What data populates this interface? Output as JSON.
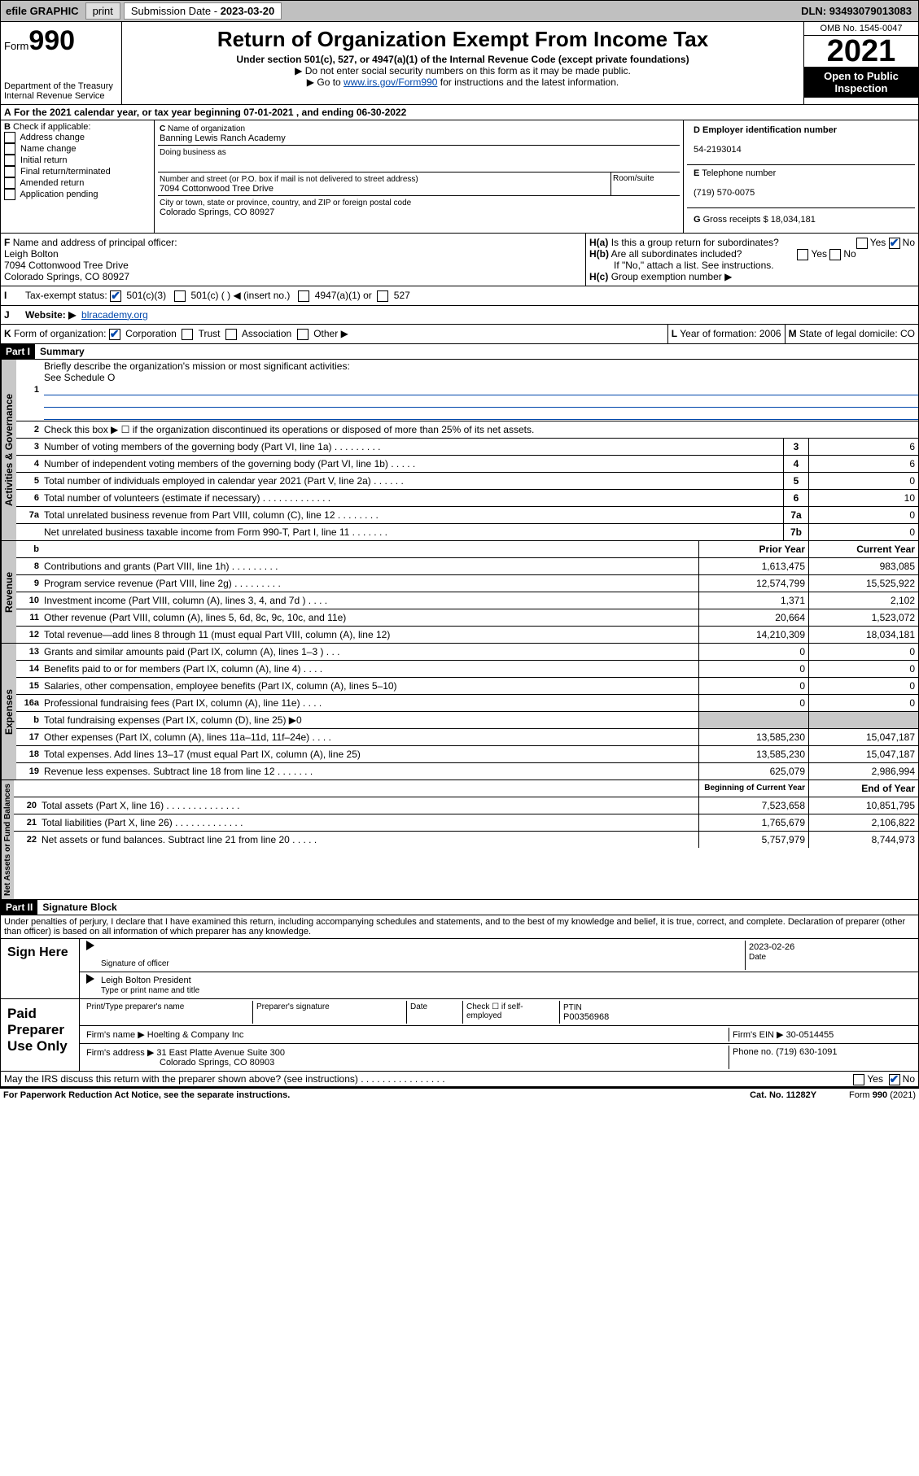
{
  "topbar": {
    "efile": "efile GRAPHIC",
    "print": "print",
    "submission_label": "Submission Date - ",
    "submission_date": "2023-03-20",
    "dln_label": "DLN: ",
    "dln": "93493079013083"
  },
  "header": {
    "form_word": "Form",
    "form_no": "990",
    "dept": "Department of the Treasury",
    "irs": "Internal Revenue Service",
    "title": "Return of Organization Exempt From Income Tax",
    "sub": "Under section 501(c), 527, or 4947(a)(1) of the Internal Revenue Code (except private foundations)",
    "note1": "▶ Do not enter social security numbers on this form as it may be made public.",
    "note2_pre": "▶ Go to ",
    "note2_link": "www.irs.gov/Form990",
    "note2_post": " for instructions and the latest information.",
    "omb": "OMB No. 1545-0047",
    "year": "2021",
    "opi": "Open to Public Inspection"
  },
  "A": {
    "text": "For the 2021 calendar year, or tax year beginning ",
    "begin": "07-01-2021",
    "mid": " , and ending ",
    "end": "06-30-2022"
  },
  "B": {
    "label": "Check if applicable:",
    "opts": [
      "Address change",
      "Name change",
      "Initial return",
      "Final return/terminated",
      "Amended return",
      "Application pending"
    ]
  },
  "C": {
    "name_label": "Name of organization",
    "name": "Banning Lewis Ranch Academy",
    "dba_label": "Doing business as",
    "dba": "",
    "street_label": "Number and street (or P.O. box if mail is not delivered to street address)",
    "room_label": "Room/suite",
    "street": "7094 Cottonwood Tree Drive",
    "city_label": "City or town, state or province, country, and ZIP or foreign postal code",
    "city": "Colorado Springs, CO  80927"
  },
  "D": {
    "label": "Employer identification number",
    "val": "54-2193014"
  },
  "E": {
    "label": "Telephone number",
    "val": "(719) 570-0075"
  },
  "G": {
    "label": "Gross receipts $",
    "val": "18,034,181"
  },
  "F": {
    "label": "Name and address of principal officer:",
    "name": "Leigh Bolton",
    "addr1": "7094 Cottonwood Tree Drive",
    "addr2": "Colorado Springs, CO  80927"
  },
  "H": {
    "a": "Is this a group return for subordinates?",
    "a_yes": "Yes",
    "a_no": "No",
    "b": "Are all subordinates included?",
    "b_yes": "Yes",
    "b_no": "No",
    "b_note": "If \"No,\" attach a list. See instructions.",
    "c": "Group exemption number ▶"
  },
  "I": {
    "label": "Tax-exempt status:",
    "o1": "501(c)(3)",
    "o2": "501(c) (  ) ◀ (insert no.)",
    "o3": "4947(a)(1) or",
    "o4": "527"
  },
  "J": {
    "label": "Website: ▶",
    "val": "blracademy.org"
  },
  "K": {
    "label": "Form of organization:",
    "o1": "Corporation",
    "o2": "Trust",
    "o3": "Association",
    "o4": "Other ▶"
  },
  "L": {
    "label": "Year of formation:",
    "val": "2006"
  },
  "M": {
    "label": "State of legal domicile:",
    "val": "CO"
  },
  "part1": {
    "hdr": "Part I",
    "title": "Summary"
  },
  "summary": {
    "l1": "Briefly describe the organization's mission or most significant activities:",
    "l1v": "See Schedule O",
    "l2": "Check this box ▶ ☐  if the organization discontinued its operations or disposed of more than 25% of its net assets.",
    "l3": "Number of voting members of the governing body (Part VI, line 1a)  .    .    .    .    .    .    .    .    .",
    "l3v": "6",
    "l4": "Number of independent voting members of the governing body (Part VI, line 1b)   .    .    .    .    .",
    "l4v": "6",
    "l5": "Total number of individuals employed in calendar year 2021 (Part V, line 2a)    .    .    .    .    .    .",
    "l5v": "0",
    "l6": "Total number of volunteers (estimate if necessary)   .    .    .    .    .    .    .    .    .    .    .    .    .",
    "l6v": "10",
    "l7a": "Total unrelated business revenue from Part VIII, column (C), line 12  .    .    .    .    .    .    .    .",
    "l7av": "0",
    "l7b": "Net unrelated business taxable income from Form 990-T, Part I, line 11   .    .    .    .    .    .    .",
    "l7bv": "0"
  },
  "cols": {
    "prior": "Prior Year",
    "current": "Current Year",
    "boy": "Beginning of Current Year",
    "eoy": "End of Year"
  },
  "revenue": [
    {
      "n": "8",
      "t": "Contributions and grants (Part VIII, line 1h)    .    .    .    .    .    .    .    .    .",
      "p": "1,613,475",
      "c": "983,085"
    },
    {
      "n": "9",
      "t": "Program service revenue (Part VIII, line 2g)    .    .    .    .    .    .    .    .    .",
      "p": "12,574,799",
      "c": "15,525,922"
    },
    {
      "n": "10",
      "t": "Investment income (Part VIII, column (A), lines 3, 4, and 7d )   .    .    .    .",
      "p": "1,371",
      "c": "2,102"
    },
    {
      "n": "11",
      "t": "Other revenue (Part VIII, column (A), lines 5, 6d, 8c, 9c, 10c, and 11e)",
      "p": "20,664",
      "c": "1,523,072"
    },
    {
      "n": "12",
      "t": "Total revenue—add lines 8 through 11 (must equal Part VIII, column (A), line 12)",
      "p": "14,210,309",
      "c": "18,034,181"
    }
  ],
  "expenses": [
    {
      "n": "13",
      "t": "Grants and similar amounts paid (Part IX, column (A), lines 1–3 )  .    .    .",
      "p": "0",
      "c": "0"
    },
    {
      "n": "14",
      "t": "Benefits paid to or for members (Part IX, column (A), line 4)   .    .    .    .",
      "p": "0",
      "c": "0"
    },
    {
      "n": "15",
      "t": "Salaries, other compensation, employee benefits (Part IX, column (A), lines 5–10)",
      "p": "0",
      "c": "0"
    },
    {
      "n": "16a",
      "t": "Professional fundraising fees (Part IX, column (A), line 11e)   .    .    .    .",
      "p": "0",
      "c": "0"
    },
    {
      "n": "b",
      "t": "Total fundraising expenses (Part IX, column (D), line 25) ▶0",
      "p": "",
      "c": "",
      "grey": true
    },
    {
      "n": "17",
      "t": "Other expenses (Part IX, column (A), lines 11a–11d, 11f–24e)  .    .    .    .",
      "p": "13,585,230",
      "c": "15,047,187"
    },
    {
      "n": "18",
      "t": "Total expenses. Add lines 13–17 (must equal Part IX, column (A), line 25)",
      "p": "13,585,230",
      "c": "15,047,187"
    },
    {
      "n": "19",
      "t": "Revenue less expenses. Subtract line 18 from line 12  .    .    .    .    .    .    .",
      "p": "625,079",
      "c": "2,986,994"
    }
  ],
  "netassets": [
    {
      "n": "20",
      "t": "Total assets (Part X, line 16)  .    .    .    .    .    .    .    .    .    .    .    .    .    .",
      "p": "7,523,658",
      "c": "10,851,795"
    },
    {
      "n": "21",
      "t": "Total liabilities (Part X, line 26)   .    .    .    .    .    .    .    .    .    .    .    .    .",
      "p": "1,765,679",
      "c": "2,106,822"
    },
    {
      "n": "22",
      "t": "Net assets or fund balances. Subtract line 21 from line 20  .    .    .    .    .",
      "p": "5,757,979",
      "c": "8,744,973"
    }
  ],
  "tabs": {
    "ag": "Activities & Governance",
    "rev": "Revenue",
    "exp": "Expenses",
    "na": "Net Assets or Fund Balances"
  },
  "part2": {
    "hdr": "Part II",
    "title": "Signature Block",
    "decl": "Under penalties of perjury, I declare that I have examined this return, including accompanying schedules and statements, and to the best of my knowledge and belief, it is true, correct, and complete. Declaration of preparer (other than officer) is based on all information of which preparer has any knowledge."
  },
  "sign": {
    "here": "Sign Here",
    "sig_label": "Signature of officer",
    "date_label": "Date",
    "date": "2023-02-26",
    "name": "Leigh Bolton  President",
    "name_label": "Type or print name and title"
  },
  "paid": {
    "title": "Paid Preparer Use Only",
    "c1": "Print/Type preparer's name",
    "c2": "Preparer's signature",
    "c3": "Date",
    "c4": "Check ☐ if self-employed",
    "c5": "PTIN",
    "ptin": "P00356968",
    "firm_label": "Firm's name   ▶",
    "firm": "Hoelting & Company Inc",
    "ein_label": "Firm's EIN ▶",
    "ein": "30-0514455",
    "addr_label": "Firm's address ▶",
    "addr1": "31 East Platte Avenue Suite 300",
    "addr2": "Colorado Springs, CO  80903",
    "phone_label": "Phone no.",
    "phone": "(719) 630-1091",
    "may": "May the IRS discuss this return with the preparer shown above? (see instructions)   .    .    .    .    .    .    .    .    .    .    .    .    .    .    .    .",
    "yes": "Yes",
    "no": "No"
  },
  "footer": {
    "l": "For Paperwork Reduction Act Notice, see the separate instructions.",
    "m": "Cat. No. 11282Y",
    "r": "Form 990 (2021)"
  }
}
